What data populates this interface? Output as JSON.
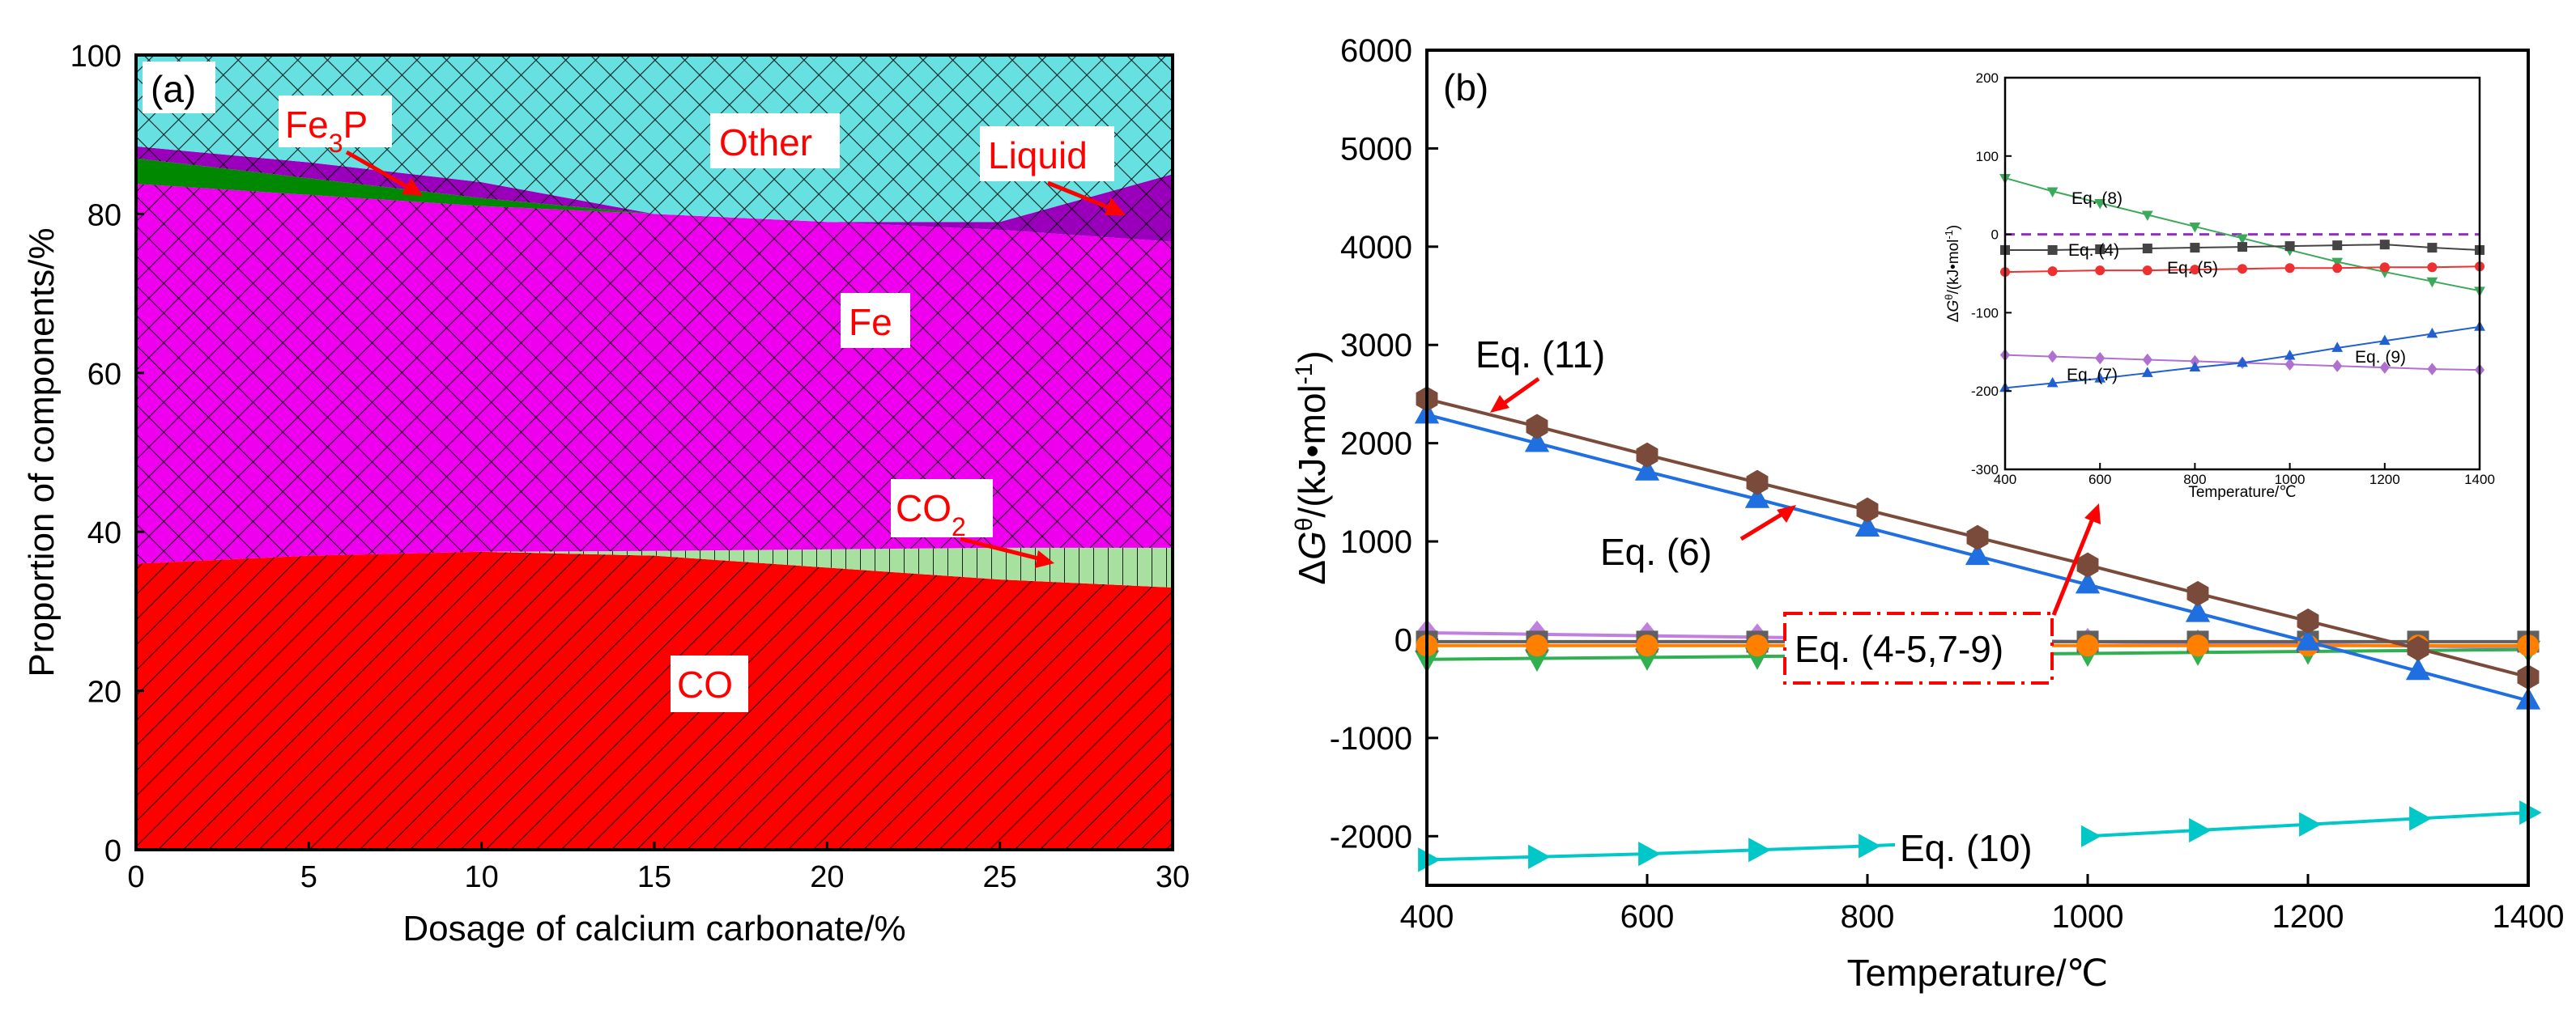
{
  "chart_data": [
    {
      "panel": "(a)",
      "type": "area",
      "xlabel": "Dosage of calcium carbonate/%",
      "ylabel": "Proportion of components/%",
      "xlim": [
        0,
        30
      ],
      "ylim": [
        0,
        100
      ],
      "xticks": [
        "0",
        "5",
        "10",
        "15",
        "20",
        "25",
        "30"
      ],
      "yticks": [
        "0",
        "20",
        "40",
        "60",
        "80",
        "100"
      ],
      "layers": [
        {
          "name": "CO",
          "color": "#ff0000",
          "x": [
            0,
            5,
            10,
            15,
            20,
            25,
            30
          ],
          "lower": [
            0,
            0,
            0,
            0,
            0,
            0,
            0
          ],
          "upper": [
            36.0,
            37.0,
            37.5,
            37.0,
            35.5,
            34.0,
            33.0
          ]
        },
        {
          "name": "CO2",
          "color": "#a8e0a0",
          "x": [
            0,
            5,
            10,
            15,
            20,
            25,
            30
          ],
          "lower": [
            36.0,
            37.0,
            37.5,
            37.0,
            35.5,
            34.0,
            33.0
          ],
          "upper": [
            36.0,
            37.0,
            37.5,
            37.6,
            37.8,
            38.0,
            38.0
          ]
        },
        {
          "name": "Fe",
          "color": "#ee00ee",
          "x": [
            0,
            5,
            10,
            15,
            20,
            25,
            30
          ],
          "lower": [
            36.0,
            37.0,
            37.5,
            37.6,
            37.8,
            38.0,
            38.0
          ],
          "upper": [
            83.8,
            82.4,
            81.0,
            80.0,
            79.0,
            78.0,
            76.5
          ]
        },
        {
          "name": "Fe3P",
          "color": "#008800",
          "x": [
            0,
            5,
            10,
            15,
            20,
            25,
            30
          ],
          "lower": [
            83.8,
            82.4,
            81.0,
            80.0,
            79.0,
            78.0,
            76.5
          ],
          "upper": [
            87.0,
            84.5,
            82.0,
            80.0,
            79.0,
            78.0,
            76.5
          ]
        },
        {
          "name": "Liquid",
          "color": "#9a00bb",
          "x": [
            0,
            5,
            10,
            15,
            20,
            25,
            30
          ],
          "lower": [
            87.0,
            84.5,
            82.0,
            80.0,
            79.0,
            78.0,
            76.5
          ],
          "upper": [
            88.5,
            86.5,
            84.0,
            80.0,
            79.0,
            79.0,
            85.0
          ]
        },
        {
          "name": "Other",
          "color": "#66e0e0",
          "x": [
            0,
            5,
            10,
            15,
            20,
            25,
            30
          ],
          "lower": [
            88.5,
            86.5,
            84.0,
            80.0,
            79.0,
            79.0,
            85.0
          ],
          "upper": [
            100,
            100,
            100,
            100,
            100,
            100,
            100
          ]
        }
      ],
      "annotations": [
        {
          "text": "(a)",
          "color": "#000000"
        },
        {
          "text": "Fe3P",
          "color": "#ff0000"
        },
        {
          "text": "Other",
          "color": "#ff0000"
        },
        {
          "text": "Liquid",
          "color": "#ff0000"
        },
        {
          "text": "Fe",
          "color": "#ff0000"
        },
        {
          "text": "CO2",
          "color": "#ff0000"
        },
        {
          "text": "CO",
          "color": "#ff0000"
        }
      ]
    },
    {
      "panel": "(b)",
      "type": "line",
      "xlabel": "Temperature/℃",
      "ylabel": "ΔGθ/(kJ•mol-1)",
      "xlim": [
        400,
        1400
      ],
      "ylim": [
        -2500,
        6000
      ],
      "xticks": [
        "400",
        "600",
        "800",
        "1000",
        "1200",
        "1400"
      ],
      "yticks": [
        "-2000",
        "-1000",
        "0",
        "1000",
        "2000",
        "3000",
        "4000",
        "5000",
        "6000"
      ],
      "x": [
        400,
        500,
        600,
        700,
        800,
        900,
        1000,
        1100,
        1200,
        1300,
        1400
      ],
      "series": [
        {
          "name": "Eq. (11)",
          "color": "#7a4a3a",
          "marker": "hexagon",
          "values": [
            2450,
            2170,
            1880,
            1600,
            1320,
            1040,
            760,
            470,
            190,
            -90,
            -380
          ]
        },
        {
          "name": "Eq. (6)",
          "color": "#1f6fe0",
          "marker": "triangle-up",
          "values": [
            2290,
            2000,
            1710,
            1430,
            1140,
            850,
            560,
            270,
            -20,
            -320,
            -620
          ]
        },
        {
          "name": "Eq. (10)",
          "color": "#00c8c8",
          "marker": "triangle-right",
          "values": [
            -2240,
            -2210,
            -2180,
            -2140,
            -2100,
            -2050,
            -2000,
            -1940,
            -1880,
            -1820,
            -1760
          ]
        },
        {
          "name": "Eq. (9)",
          "color": "#c080e0",
          "marker": "diamond",
          "values": [
            70,
            55,
            40,
            25,
            10,
            -5,
            -20,
            -35,
            -50,
            -65,
            -80
          ]
        },
        {
          "name": "Eq. (8)",
          "color": "#30b050",
          "marker": "triangle-down",
          "values": [
            -200,
            -190,
            -180,
            -170,
            -160,
            -150,
            -140,
            -130,
            -120,
            -110,
            -100
          ]
        },
        {
          "name": "Eq. (4)",
          "color": "#606060",
          "marker": "square",
          "values": [
            -20,
            -20,
            -20,
            -20,
            -20,
            -20,
            -20,
            -20,
            -20,
            -20,
            -20
          ]
        },
        {
          "name": "Eq. (5)",
          "color": "#ff8000",
          "marker": "circle",
          "values": [
            -60,
            -60,
            -60,
            -60,
            -60,
            -60,
            -60,
            -60,
            -60,
            -60,
            -60
          ]
        }
      ],
      "annotations": [
        {
          "text": "(b)"
        },
        {
          "text": "Eq. (11)"
        },
        {
          "text": "Eq. (6)"
        },
        {
          "text": "Eq. (4-5,7-9)"
        },
        {
          "text": "Eq. (10)"
        }
      ],
      "inset": {
        "xlabel": "Temperature/℃",
        "ylabel": "ΔGθ/(kJ•mol-1)",
        "xlim": [
          400,
          1400
        ],
        "ylim": [
          -300,
          200
        ],
        "xticks": [
          "400",
          "600",
          "800",
          "1000",
          "1200",
          "1400"
        ],
        "yticks": [
          "-300",
          "-200",
          "-100",
          "0",
          "100",
          "200"
        ],
        "x": [
          400,
          500,
          600,
          700,
          800,
          900,
          1000,
          1100,
          1200,
          1300,
          1400
        ],
        "series": [
          {
            "name": "Eq. (8)",
            "color": "#3aaa5a",
            "marker": "triangle-down",
            "values": [
              72,
              55,
              40,
              25,
              10,
              -5,
              -20,
              -35,
              -48,
              -60,
              -72
            ]
          },
          {
            "name": "Eq. (4)",
            "color": "#444444",
            "marker": "square",
            "values": [
              -20,
              -20,
              -19,
              -18,
              -17,
              -16,
              -15,
              -14,
              -13,
              -17,
              -20
            ]
          },
          {
            "name": "Eq. (5)",
            "color": "#ee3030",
            "marker": "circle",
            "values": [
              -48,
              -47,
              -46,
              -46,
              -45,
              -44,
              -43,
              -43,
              -42,
              -42,
              -41
            ]
          },
          {
            "name": "Eq. (9)",
            "color": "#b070d0",
            "marker": "diamond",
            "values": [
              -154,
              -156,
              -158,
              -160,
              -162,
              -164,
              -166,
              -168,
              -170,
              -172,
              -173
            ]
          },
          {
            "name": "Eq. (7)",
            "color": "#2060d0",
            "marker": "triangle-up",
            "values": [
              -196,
              -190,
              -184,
              -177,
              -170,
              -164,
              -155,
              -145,
              -136,
              -127,
              -118
            ]
          }
        ],
        "zero_line_color": "#9030c0"
      }
    }
  ]
}
